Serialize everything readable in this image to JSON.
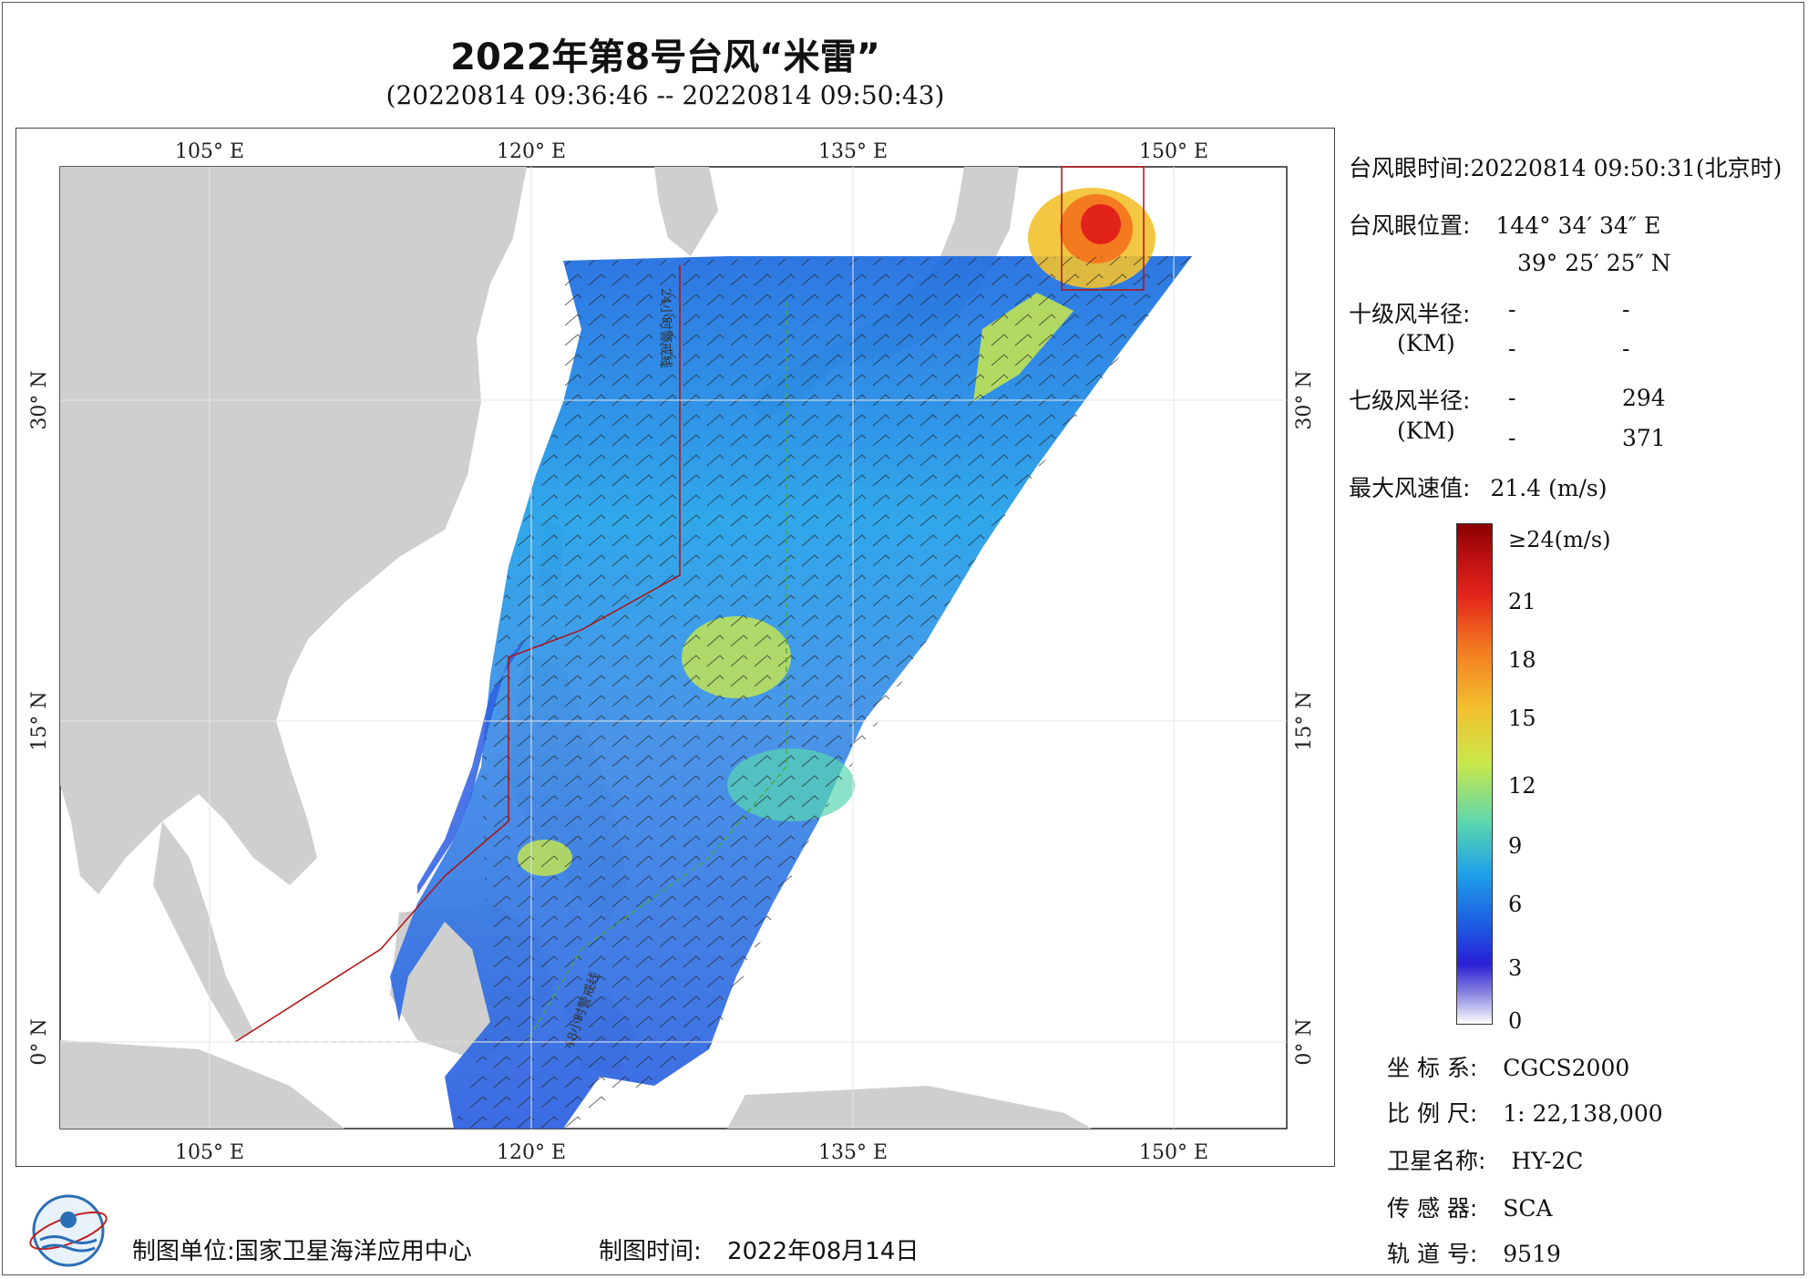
{
  "header": {
    "title": "2022年第8号台风“米雷”",
    "subtitle": "(20220814 09:36:46 -- 20220814 09:50:43)"
  },
  "map": {
    "lon_labels": [
      "105° E",
      "120° E",
      "135° E",
      "150° E"
    ],
    "lat_labels": [
      "30° N",
      "15° N",
      "0° N"
    ],
    "track_label_1": "24小时警戒线",
    "track_label_2": "48小时警戒线"
  },
  "info": {
    "eye_time_label": "台风眼时间:",
    "eye_time_value": "20220814 09:50:31(北京时)",
    "eye_pos_label": "台风眼位置:",
    "eye_lon": "144° 34′ 34″ E",
    "eye_lat": "39° 25′ 25″ N",
    "r10_label": "十级风半径:",
    "r10_unit": "(KM)",
    "r10_a1": "-",
    "r10_a2": "-",
    "r10_b1": "-",
    "r10_b2": "-",
    "r7_label": "七级风半径:",
    "r7_unit": "(KM)",
    "r7_a1": "-",
    "r7_a2": "294",
    "r7_b1": "-",
    "r7_b2": "371",
    "max_label": "最大风速值:",
    "max_value": "21.4  (m/s)"
  },
  "colorbar": {
    "labels": [
      "≥24(m/s)",
      "21",
      "18",
      "15",
      "12",
      "9",
      "6",
      "3",
      "0"
    ],
    "colors": [
      "#8b0000",
      "#e2231a",
      "#f47a20",
      "#f2c12e",
      "#c9e84a",
      "#59d6b0",
      "#1ea0e8",
      "#1d4fe0",
      "#2a1fd6",
      "#e8e6f7"
    ]
  },
  "meta": {
    "crs_label": "坐 标 系:",
    "crs_value": "CGCS2000",
    "scale_label": "比 例 尺:",
    "scale_value": "1: 22,138,000",
    "sat_label": "卫星名称:",
    "sat_value": "HY-2C",
    "sensor_label": "传 感 器:",
    "sensor_value": "SCA",
    "orbit_label": "轨 道 号:",
    "orbit_value": "9519"
  },
  "footer": {
    "unit_label": "制图单位:",
    "unit_value": "国家卫星海洋应用中心",
    "time_label": "制图时间:",
    "time_value": "2022年08月14日"
  }
}
